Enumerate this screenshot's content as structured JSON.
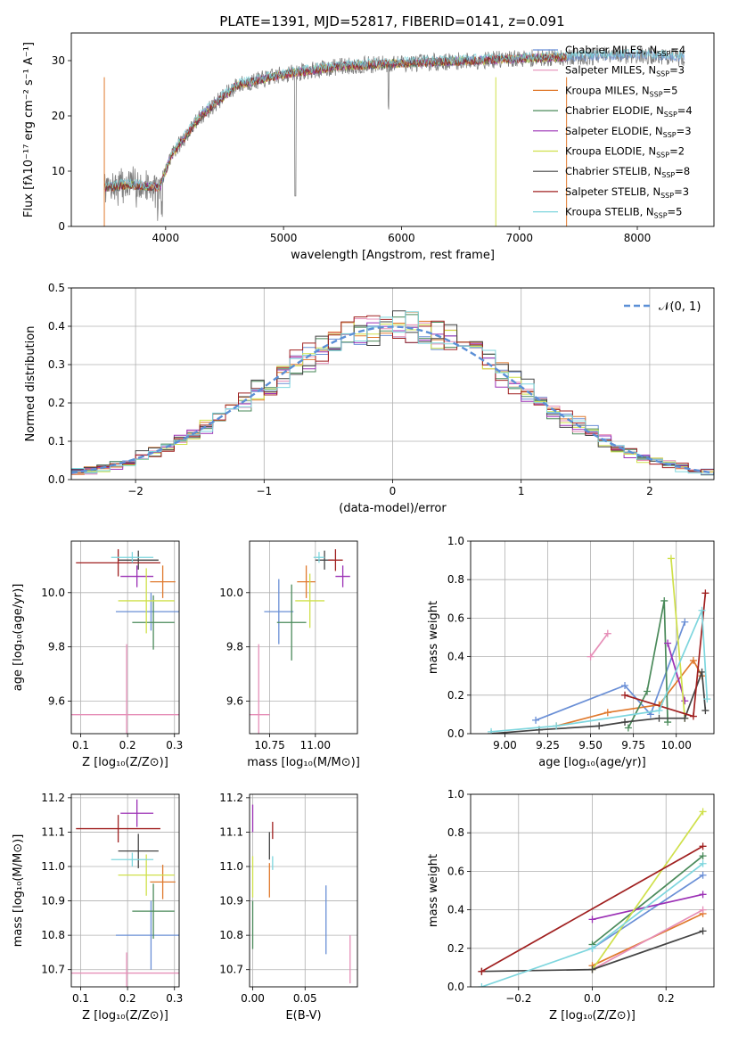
{
  "figure_title": "PLATE=1391, MJD=52817, FIBERID=0141, z=0.091",
  "model_colors": [
    "#6a8fd6",
    "#e07a2e",
    "#4a8a5a",
    "#e68fb8",
    "#9b30b5",
    "#cfe04a",
    "#444444",
    "#a02020",
    "#7ed6de"
  ],
  "chart_data": [
    {
      "id": "spectrum",
      "type": "line",
      "xlabel": "wavelength [Angstrom, rest frame]",
      "ylabel": "Flux [fλ10⁻¹⁷ erg cm⁻² s⁻¹ A⁻¹]",
      "xlim": [
        3200,
        8650
      ],
      "ylim": [
        0,
        35
      ],
      "xticks": [
        "4000",
        "5000",
        "6000",
        "7000",
        "8000"
      ],
      "yticks": [
        "0",
        "10",
        "20",
        "30"
      ],
      "legend_position": "upper-right",
      "legend": [
        {
          "label": "Chabrier MILES, N",
          "sub": "SSP",
          "tail": "=4",
          "color": "#6a8fd6"
        },
        {
          "label": "Salpeter MILES, N",
          "sub": "SSP",
          "tail": "=3",
          "color": "#e68fb8"
        },
        {
          "label": "Kroupa MILES, N",
          "sub": "SSP",
          "tail": "=5",
          "color": "#e07a2e"
        },
        {
          "label": "Chabrier ELODIE, N",
          "sub": "SSP",
          "tail": "=4",
          "color": "#4a8a5a"
        },
        {
          "label": "Salpeter ELODIE, N",
          "sub": "SSP",
          "tail": "=3",
          "color": "#9b30b5"
        },
        {
          "label": "Kroupa ELODIE, N",
          "sub": "SSP",
          "tail": "=2",
          "color": "#cfe04a"
        },
        {
          "label": "Chabrier STELIB, N",
          "sub": "SSP",
          "tail": "=8",
          "color": "#444444"
        },
        {
          "label": "Salpeter STELIB, N",
          "sub": "SSP",
          "tail": "=3",
          "color": "#a02020"
        },
        {
          "label": "Kroupa STELIB, N",
          "sub": "SSP",
          "tail": "=5",
          "color": "#7ed6de"
        }
      ],
      "continuum": [
        [
          3480,
          7
        ],
        [
          3700,
          7.5
        ],
        [
          3950,
          7
        ],
        [
          4050,
          13
        ],
        [
          4300,
          20
        ],
        [
          4600,
          25.5
        ],
        [
          5000,
          27.5
        ],
        [
          5500,
          29
        ],
        [
          6000,
          29.5
        ],
        [
          6600,
          30
        ],
        [
          7200,
          30.5
        ],
        [
          8000,
          31
        ],
        [
          8400,
          30.5
        ]
      ]
    },
    {
      "id": "residuals",
      "type": "histogram",
      "xlabel": "(data-model)/error",
      "ylabel": "Normed distribution",
      "xlim": [
        -2.5,
        2.5
      ],
      "ylim": [
        0,
        0.5
      ],
      "xticks": [
        "−2",
        "−1",
        "0",
        "1",
        "2"
      ],
      "yticks": [
        "0.0",
        "0.1",
        "0.2",
        "0.3",
        "0.4",
        "0.5"
      ],
      "legend": "𝒩(0, 1)",
      "reference": "normal(0,1)"
    },
    {
      "id": "age-vs-Z",
      "type": "errorbar",
      "xlabel": "Z [log₁₀(Z/Z⊙)]",
      "ylabel": "age [log₁₀(age/yr)]",
      "xlim": [
        0.08,
        0.31
      ],
      "ylim": [
        9.48,
        10.19
      ],
      "xticks": [
        {
          "v": 0.1,
          "t": "0.1"
        },
        {
          "v": 0.2,
          "t": "0.2"
        },
        {
          "v": 0.3,
          "t": "0.3"
        }
      ],
      "yticks": [
        {
          "v": 9.6,
          "t": "9.6"
        },
        {
          "v": 9.8,
          "t": "9.8"
        },
        {
          "v": 10.0,
          "t": "10.0"
        }
      ],
      "points": [
        {
          "x": 0.25,
          "xe": 0.075,
          "y": 9.93,
          "ye": 0.07,
          "color": "#6a8fd6"
        },
        {
          "x": 0.275,
          "xe": 0.027,
          "y": 10.04,
          "ye": 0.06,
          "color": "#e07a2e"
        },
        {
          "x": 0.255,
          "xe": 0.045,
          "y": 9.89,
          "ye": 0.1,
          "color": "#4a8a5a"
        },
        {
          "x": 0.198,
          "xe": 0.2,
          "y": 9.55,
          "ye": 0.26,
          "color": "#e68fb8"
        },
        {
          "x": 0.22,
          "xe": 0.035,
          "y": 10.06,
          "ye": 0.04,
          "color": "#9b30b5"
        },
        {
          "x": 0.24,
          "xe": 0.06,
          "y": 9.97,
          "ye": 0.12,
          "color": "#cfe04a"
        },
        {
          "x": 0.223,
          "xe": 0.043,
          "y": 10.12,
          "ye": 0.035,
          "color": "#444444"
        },
        {
          "x": 0.18,
          "xe": 0.09,
          "y": 10.11,
          "ye": 0.05,
          "color": "#a02020"
        },
        {
          "x": 0.21,
          "xe": 0.045,
          "y": 10.13,
          "ye": 0.02,
          "color": "#7ed6de"
        }
      ]
    },
    {
      "id": "age-vs-mass",
      "type": "errorbar",
      "xlabel": "mass [log₁₀(M/M⊙)]",
      "ylabel": "",
      "xlim": [
        10.64,
        11.23
      ],
      "ylim": [
        9.48,
        10.19
      ],
      "xticks": [
        {
          "v": 10.75,
          "t": "10.75"
        },
        {
          "v": 11.0,
          "t": "11.00"
        }
      ],
      "yticks": [
        {
          "v": 9.6,
          "t": "9.6"
        },
        {
          "v": 9.8,
          "t": "9.8"
        },
        {
          "v": 10.0,
          "t": "10.0"
        }
      ],
      "points": [
        {
          "x": 10.8,
          "xe": 0.08,
          "y": 9.93,
          "ye": 0.12,
          "color": "#6a8fd6"
        },
        {
          "x": 10.95,
          "xe": 0.05,
          "y": 10.04,
          "ye": 0.06,
          "color": "#e07a2e"
        },
        {
          "x": 10.87,
          "xe": 0.08,
          "y": 9.89,
          "ye": 0.14,
          "color": "#4a8a5a"
        },
        {
          "x": 10.69,
          "xe": 0.06,
          "y": 9.55,
          "ye": 0.26,
          "color": "#e68fb8"
        },
        {
          "x": 11.15,
          "xe": 0.04,
          "y": 10.06,
          "ye": 0.04,
          "color": "#9b30b5"
        },
        {
          "x": 10.97,
          "xe": 0.08,
          "y": 9.97,
          "ye": 0.1,
          "color": "#cfe04a"
        },
        {
          "x": 11.05,
          "xe": 0.05,
          "y": 10.12,
          "ye": 0.035,
          "color": "#444444"
        },
        {
          "x": 11.11,
          "xe": 0.04,
          "y": 10.12,
          "ye": 0.04,
          "color": "#a02020"
        },
        {
          "x": 11.02,
          "xe": 0.03,
          "y": 10.13,
          "ye": 0.02,
          "color": "#7ed6de"
        }
      ]
    },
    {
      "id": "weight-vs-age",
      "type": "line",
      "xlabel": "age [log₁₀(age/yr)]",
      "ylabel": "mass weight",
      "xlim": [
        8.8,
        10.22
      ],
      "ylim": [
        0,
        1.0
      ],
      "xticks": [
        {
          "v": 9.0,
          "t": "9.00"
        },
        {
          "v": 9.25,
          "t": "9.25"
        },
        {
          "v": 9.5,
          "t": "9.50"
        },
        {
          "v": 9.75,
          "t": "9.75"
        },
        {
          "v": 10.0,
          "t": "10.00"
        }
      ],
      "yticks": [
        {
          "v": 0.0,
          "t": "0.0"
        },
        {
          "v": 0.2,
          "t": "0.2"
        },
        {
          "v": 0.4,
          "t": "0.4"
        },
        {
          "v": 0.6,
          "t": "0.6"
        },
        {
          "v": 0.8,
          "t": "0.8"
        },
        {
          "v": 1.0,
          "t": "1.0"
        }
      ],
      "series": [
        {
          "color": "#6a8fd6",
          "x": [
            9.18,
            9.7,
            9.85,
            10.05
          ],
          "y": [
            0.07,
            0.25,
            0.1,
            0.58
          ]
        },
        {
          "color": "#e07a2e",
          "x": [
            9.3,
            9.6,
            9.9,
            10.1,
            10.15
          ],
          "y": [
            0.04,
            0.11,
            0.15,
            0.38,
            0.3
          ]
        },
        {
          "color": "#4a8a5a",
          "x": [
            9.72,
            9.83,
            9.93,
            9.95
          ],
          "y": [
            0.03,
            0.22,
            0.69,
            0.06
          ]
        },
        {
          "color": "#e68fb8",
          "x": [
            9.5,
            9.6
          ],
          "y": [
            0.4,
            0.52
          ]
        },
        {
          "color": "#9b30b5",
          "x": [
            9.95,
            10.05
          ],
          "y": [
            0.47,
            0.17
          ]
        },
        {
          "color": "#cfe04a",
          "x": [
            9.97,
            10.05
          ],
          "y": [
            0.91,
            0.08
          ]
        },
        {
          "color": "#444444",
          "x": [
            8.92,
            9.2,
            9.55,
            9.7,
            9.9,
            10.05,
            10.15,
            10.17
          ],
          "y": [
            0.0,
            0.02,
            0.04,
            0.06,
            0.08,
            0.08,
            0.32,
            0.12
          ]
        },
        {
          "color": "#a02020",
          "x": [
            9.7,
            10.1,
            10.17
          ],
          "y": [
            0.2,
            0.09,
            0.73
          ]
        },
        {
          "color": "#7ed6de",
          "x": [
            8.92,
            9.3,
            9.9,
            10.15,
            10.18
          ],
          "y": [
            0.01,
            0.04,
            0.12,
            0.64,
            0.18
          ]
        }
      ]
    },
    {
      "id": "mass-vs-Z",
      "type": "errorbar",
      "xlabel": "Z [log₁₀(Z/Z⊙)]",
      "ylabel": "mass [log₁₀(M/M⊙)]",
      "xlim": [
        0.08,
        0.31
      ],
      "ylim": [
        10.65,
        11.21
      ],
      "xticks": [
        {
          "v": 0.1,
          "t": "0.1"
        },
        {
          "v": 0.2,
          "t": "0.2"
        },
        {
          "v": 0.3,
          "t": "0.3"
        }
      ],
      "yticks": [
        {
          "v": 10.7,
          "t": "10.7"
        },
        {
          "v": 10.8,
          "t": "10.8"
        },
        {
          "v": 10.9,
          "t": "10.9"
        },
        {
          "v": 11.0,
          "t": "11.0"
        },
        {
          "v": 11.1,
          "t": "11.1"
        },
        {
          "v": 11.2,
          "t": "11.2"
        }
      ],
      "points": [
        {
          "x": 0.25,
          "xe": 0.075,
          "y": 10.8,
          "ye": 0.1,
          "color": "#6a8fd6"
        },
        {
          "x": 0.275,
          "xe": 0.027,
          "y": 10.955,
          "ye": 0.05,
          "color": "#e07a2e"
        },
        {
          "x": 0.255,
          "xe": 0.045,
          "y": 10.87,
          "ye": 0.08,
          "color": "#4a8a5a"
        },
        {
          "x": 0.198,
          "xe": 0.2,
          "y": 10.69,
          "ye": 0.06,
          "color": "#e68fb8"
        },
        {
          "x": 0.22,
          "xe": 0.035,
          "y": 11.155,
          "ye": 0.04,
          "color": "#9b30b5"
        },
        {
          "x": 0.24,
          "xe": 0.06,
          "y": 10.975,
          "ye": 0.06,
          "color": "#cfe04a"
        },
        {
          "x": 0.223,
          "xe": 0.043,
          "y": 11.045,
          "ye": 0.05,
          "color": "#444444"
        },
        {
          "x": 0.18,
          "xe": 0.09,
          "y": 11.11,
          "ye": 0.04,
          "color": "#a02020"
        },
        {
          "x": 0.21,
          "xe": 0.045,
          "y": 11.02,
          "ye": 0.02,
          "color": "#7ed6de"
        }
      ]
    },
    {
      "id": "mass-vs-EBV",
      "type": "errorbar",
      "xlabel": "E(B-V)",
      "ylabel": "",
      "xlim": [
        -0.003,
        0.1
      ],
      "ylim": [
        10.65,
        11.21
      ],
      "xticks": [
        {
          "v": 0.0,
          "t": "0.00"
        },
        {
          "v": 0.05,
          "t": "0.05"
        }
      ],
      "yticks": [
        {
          "v": 10.7,
          "t": "10.7"
        },
        {
          "v": 10.8,
          "t": "10.8"
        },
        {
          "v": 10.9,
          "t": "10.9"
        },
        {
          "v": 11.0,
          "t": "11.0"
        },
        {
          "v": 11.1,
          "t": "11.1"
        },
        {
          "v": 11.2,
          "t": "11.2"
        }
      ],
      "points": [
        {
          "x": 0.07,
          "xe": 0,
          "y": 10.845,
          "ye": 0.1,
          "color": "#6a8fd6"
        },
        {
          "x": 0.016,
          "xe": 0,
          "y": 10.96,
          "ye": 0.05,
          "color": "#e07a2e"
        },
        {
          "x": 0.0,
          "xe": 0,
          "y": 10.83,
          "ye": 0.07,
          "color": "#4a8a5a"
        },
        {
          "x": 0.093,
          "xe": 0,
          "y": 10.73,
          "ye": 0.07,
          "color": "#e68fb8"
        },
        {
          "x": 0.0,
          "xe": 0,
          "y": 11.14,
          "ye": 0.04,
          "color": "#9b30b5"
        },
        {
          "x": 0.0,
          "xe": 0,
          "y": 10.97,
          "ye": 0.06,
          "color": "#cfe04a"
        },
        {
          "x": 0.016,
          "xe": 0,
          "y": 11.06,
          "ye": 0.04,
          "color": "#444444"
        },
        {
          "x": 0.019,
          "xe": 0,
          "y": 11.105,
          "ye": 0.025,
          "color": "#a02020"
        },
        {
          "x": 0.019,
          "xe": 0,
          "y": 11.01,
          "ye": 0.02,
          "color": "#7ed6de"
        }
      ]
    },
    {
      "id": "weight-vs-Z",
      "type": "line",
      "xlabel": "Z [log₁₀(Z/Z⊙)]",
      "ylabel": "mass weight",
      "xlim": [
        -0.33,
        0.33
      ],
      "ylim": [
        0,
        1.0
      ],
      "xticks": [
        {
          "v": -0.2,
          "t": "−0.2"
        },
        {
          "v": 0.0,
          "t": "0.0"
        },
        {
          "v": 0.2,
          "t": "0.2"
        }
      ],
      "yticks": [
        {
          "v": 0.0,
          "t": "0.0"
        },
        {
          "v": 0.2,
          "t": "0.2"
        },
        {
          "v": 0.4,
          "t": "0.4"
        },
        {
          "v": 0.6,
          "t": "0.6"
        },
        {
          "v": 0.8,
          "t": "0.8"
        },
        {
          "v": 1.0,
          "t": "1.0"
        }
      ],
      "series": [
        {
          "color": "#6a8fd6",
          "x": [
            0.0,
            0.3
          ],
          "y": [
            0.2,
            0.58
          ]
        },
        {
          "color": "#e07a2e",
          "x": [
            0.0,
            0.3
          ],
          "y": [
            0.11,
            0.38
          ]
        },
        {
          "color": "#4a8a5a",
          "x": [
            0.0,
            0.3
          ],
          "y": [
            0.22,
            0.68
          ]
        },
        {
          "color": "#e68fb8",
          "x": [
            0.0,
            0.3
          ],
          "y": [
            0.09,
            0.4
          ]
        },
        {
          "color": "#9b30b5",
          "x": [
            0.0,
            0.3
          ],
          "y": [
            0.35,
            0.48
          ]
        },
        {
          "color": "#cfe04a",
          "x": [
            0.0,
            0.3
          ],
          "y": [
            0.09,
            0.91
          ]
        },
        {
          "color": "#444444",
          "x": [
            -0.3,
            0.0,
            0.3
          ],
          "y": [
            0.08,
            0.09,
            0.29
          ]
        },
        {
          "color": "#a02020",
          "x": [
            -0.3,
            0.3
          ],
          "y": [
            0.08,
            0.73
          ]
        },
        {
          "color": "#7ed6de",
          "x": [
            -0.3,
            0.0,
            0.3
          ],
          "y": [
            0.0,
            0.2,
            0.64
          ]
        }
      ]
    }
  ]
}
